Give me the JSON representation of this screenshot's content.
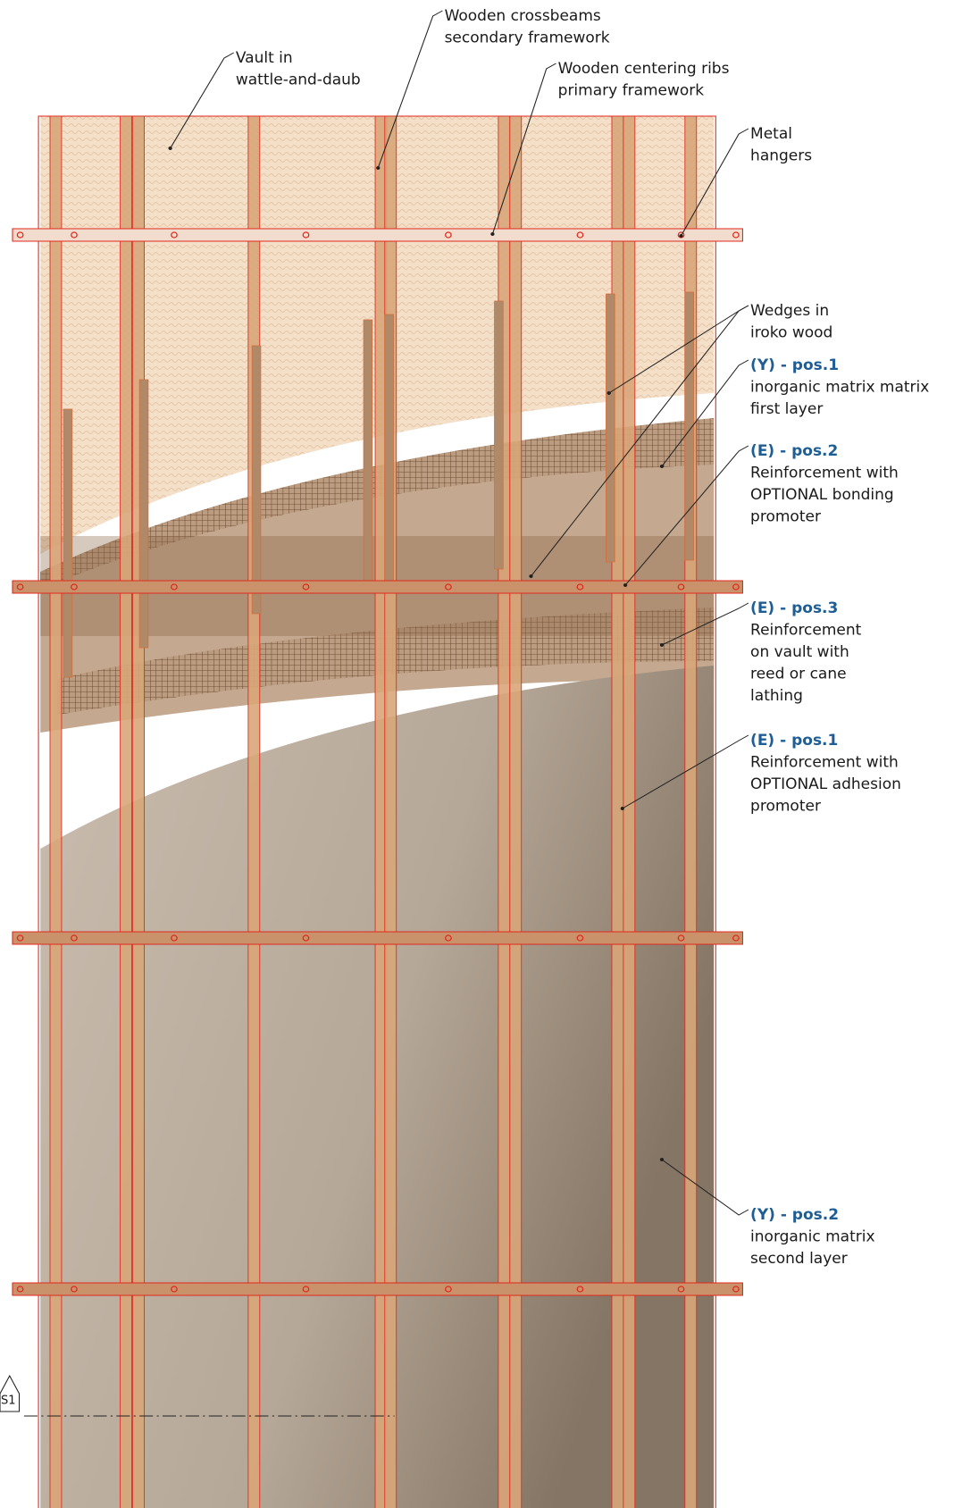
{
  "callouts": [
    {
      "lines": [
        "Vault in",
        "wattle-and-daub"
      ]
    },
    {
      "lines": [
        "Wooden crossbeams",
        "secondary framework"
      ]
    },
    {
      "lines": [
        "Wooden centering ribs",
        "primary framework"
      ]
    },
    {
      "lines": [
        "Metal",
        "hangers"
      ]
    },
    {
      "lines": [
        "Wedges in",
        "iroko wood"
      ]
    },
    {
      "code": "(Y) - pos.1",
      "lines": [
        "inorganic matrix matrix",
        "first layer"
      ]
    },
    {
      "code": "(E) - pos.2",
      "lines": [
        "Reinforcement with",
        "OPTIONAL bonding",
        "promoter"
      ]
    },
    {
      "code": "(E) - pos.3",
      "lines": [
        "Reinforcement",
        "on vault with",
        "reed or cane",
        "lathing"
      ]
    },
    {
      "code": "(E) - pos.1",
      "lines": [
        "Reinforcement with",
        "OPTIONAL adhesion",
        "promoter"
      ]
    },
    {
      "code": "(Y) - pos.2",
      "lines": [
        "inorganic matrix",
        "second layer"
      ]
    }
  ],
  "section_marker": "S1"
}
